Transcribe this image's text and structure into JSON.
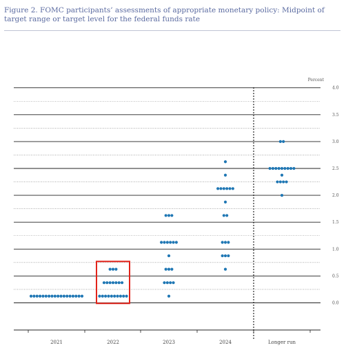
{
  "figure": {
    "caption": "Figure 2.  FOMC participants’ assessments of appropriate monetary policy:  Midpoint of target range or target level for the federal funds rate"
  },
  "chart_data": {
    "type": "scatter",
    "ylabel": "Percent",
    "ylim": [
      -0.25,
      4.0
    ],
    "yticks": [
      "4.0",
      "3.5",
      "3.0",
      "2.5",
      "2.0",
      "1.5",
      "1.0",
      "0.5",
      "0.0"
    ],
    "categories": [
      "2021",
      "2022",
      "2023",
      "2024",
      "Longer run"
    ],
    "dot_color": "#1f77b4",
    "highlight_color": "#e2231a",
    "highlight_category": "2022",
    "dots": [
      {
        "x": "2021",
        "y": 0.125,
        "count": 18
      },
      {
        "x": "2022",
        "y": 0.125,
        "count": 10
      },
      {
        "x": "2022",
        "y": 0.375,
        "count": 7
      },
      {
        "x": "2022",
        "y": 0.625,
        "count": 3
      },
      {
        "x": "2023",
        "y": 0.125,
        "count": 1
      },
      {
        "x": "2023",
        "y": 0.375,
        "count": 4
      },
      {
        "x": "2023",
        "y": 0.625,
        "count": 3
      },
      {
        "x": "2023",
        "y": 0.875,
        "count": 1
      },
      {
        "x": "2023",
        "y": 1.125,
        "count": 6
      },
      {
        "x": "2023",
        "y": 1.625,
        "count": 3
      },
      {
        "x": "2024",
        "y": 0.625,
        "count": 1
      },
      {
        "x": "2024",
        "y": 0.875,
        "count": 3
      },
      {
        "x": "2024",
        "y": 1.125,
        "count": 3
      },
      {
        "x": "2024",
        "y": 1.625,
        "count": 2
      },
      {
        "x": "2024",
        "y": 1.875,
        "count": 1
      },
      {
        "x": "2024",
        "y": 2.125,
        "count": 6
      },
      {
        "x": "2024",
        "y": 2.375,
        "count": 1
      },
      {
        "x": "2024",
        "y": 2.625,
        "count": 1
      },
      {
        "x": "Longer run",
        "y": 2.0,
        "count": 1
      },
      {
        "x": "Longer run",
        "y": 2.25,
        "count": 4
      },
      {
        "x": "Longer run",
        "y": 2.375,
        "count": 1
      },
      {
        "x": "Longer run",
        "y": 2.5,
        "count": 9
      },
      {
        "x": "Longer run",
        "y": 3.0,
        "count": 2
      }
    ]
  }
}
